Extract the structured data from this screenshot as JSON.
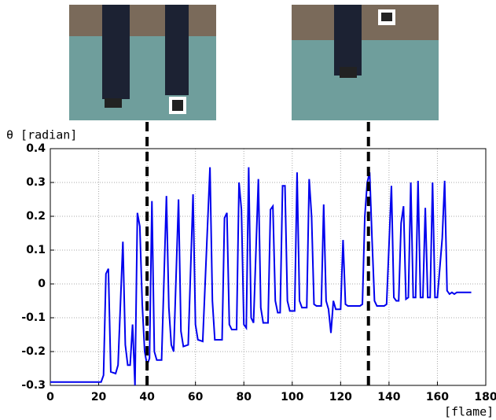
{
  "chart_data": {
    "type": "line",
    "y_label": "θ [radian]",
    "x_label": "[flame]",
    "xlim": [
      0,
      180
    ],
    "xticks": [
      0,
      20,
      40,
      60,
      80,
      100,
      120,
      140,
      160,
      180
    ],
    "ylim": [
      -0.3,
      0.4
    ],
    "yticks": [
      0.4,
      0.3,
      0.2,
      0.1,
      0,
      -0.1,
      -0.2,
      -0.3
    ],
    "grid": true,
    "markers": [
      40,
      131.5
    ],
    "series": [
      {
        "color": "#0000ee",
        "x": [
          0,
          21,
          22,
          23,
          24,
          25,
          27,
          28,
          30,
          31,
          32,
          33,
          34,
          35,
          36,
          37,
          38,
          39,
          40,
          41,
          42,
          43,
          44,
          46,
          48,
          49,
          50,
          51,
          53,
          54,
          55,
          57,
          59,
          60,
          61,
          63,
          66,
          67,
          68,
          71,
          72,
          73,
          74,
          75,
          77,
          78,
          79,
          80,
          81,
          82,
          83,
          84,
          86,
          87,
          88,
          90,
          91,
          92,
          93,
          94,
          95,
          96,
          97,
          98,
          99,
          101,
          102,
          103,
          104,
          106,
          107,
          108,
          109,
          110,
          112,
          113,
          114,
          115,
          116,
          117,
          118,
          120,
          121,
          122,
          123,
          128,
          129,
          130,
          131,
          132,
          133,
          134,
          135,
          138,
          139,
          141,
          142,
          143,
          144,
          145,
          146,
          147,
          148,
          149,
          150,
          151,
          152,
          153,
          154,
          155,
          156,
          157,
          158,
          159,
          160,
          162,
          163,
          164,
          165,
          166,
          167,
          168,
          170,
          174
        ],
        "values": [
          -0.29,
          -0.29,
          -0.27,
          0.03,
          0.045,
          -0.26,
          -0.265,
          -0.24,
          0.125,
          -0.18,
          -0.24,
          -0.24,
          -0.12,
          -0.3,
          0.21,
          0.17,
          -0.06,
          -0.2,
          -0.24,
          -0.22,
          0.245,
          -0.2,
          -0.225,
          -0.225,
          0.26,
          -0.07,
          -0.18,
          -0.2,
          0.25,
          -0.14,
          -0.185,
          -0.18,
          0.265,
          -0.12,
          -0.165,
          -0.17,
          0.345,
          -0.05,
          -0.165,
          -0.165,
          0.195,
          0.21,
          -0.12,
          -0.135,
          -0.135,
          0.3,
          0.22,
          -0.12,
          -0.13,
          0.345,
          -0.1,
          -0.115,
          0.31,
          -0.07,
          -0.115,
          -0.115,
          0.22,
          0.23,
          -0.05,
          -0.085,
          -0.085,
          0.29,
          0.29,
          -0.05,
          -0.08,
          -0.08,
          0.33,
          -0.05,
          -0.07,
          -0.07,
          0.31,
          0.2,
          -0.06,
          -0.065,
          -0.065,
          0.235,
          -0.05,
          -0.075,
          -0.145,
          -0.05,
          -0.075,
          -0.075,
          0.13,
          -0.06,
          -0.065,
          -0.065,
          -0.06,
          0.2,
          0.3,
          0.33,
          0.13,
          -0.05,
          -0.065,
          -0.065,
          -0.06,
          0.29,
          -0.04,
          -0.05,
          -0.05,
          0.18,
          0.23,
          -0.045,
          -0.04,
          0.3,
          -0.04,
          -0.04,
          0.305,
          -0.04,
          -0.04,
          0.225,
          -0.04,
          -0.04,
          0.3,
          -0.04,
          -0.04,
          0.135,
          0.305,
          -0.02,
          -0.03,
          -0.025,
          -0.03,
          -0.025,
          -0.025,
          -0.025
        ]
      }
    ]
  }
}
